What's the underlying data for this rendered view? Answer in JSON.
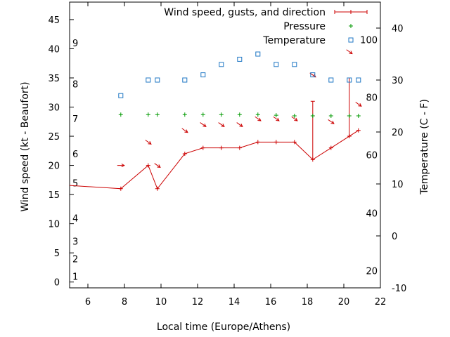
{
  "chart_data": {
    "type": "line",
    "xlabel": "Local time (Europe/Athens)",
    "ylabel_left": "Wind speed (kt - Beaufort)",
    "ylabel_right": "Temperature (C - F)",
    "xlim": [
      5,
      22
    ],
    "ylim_left": [
      -1,
      48
    ],
    "ylim_right": [
      -10,
      45
    ],
    "x_ticks": [
      6,
      8,
      10,
      12,
      14,
      16,
      18,
      20,
      22
    ],
    "y_left_ticks": [
      0,
      5,
      10,
      15,
      20,
      25,
      30,
      35,
      40,
      45
    ],
    "y_right_ticks": [
      -10,
      0,
      10,
      20,
      30,
      40
    ],
    "beaufort_labels": [
      {
        "label": "1",
        "value": 1
      },
      {
        "label": "2",
        "value": 4
      },
      {
        "label": "3",
        "value": 7
      },
      {
        "label": "4",
        "value": 11
      },
      {
        "label": "5",
        "value": 17
      },
      {
        "label": "6",
        "value": 22
      },
      {
        "label": "7",
        "value": 28
      },
      {
        "label": "8",
        "value": 34
      },
      {
        "label": "9",
        "value": 41
      }
    ],
    "fahrenheit_labels": [
      {
        "label": "20",
        "value": -6.7
      },
      {
        "label": "40",
        "value": 4.4
      },
      {
        "label": "60",
        "value": 15.6
      },
      {
        "label": "80",
        "value": 26.7
      },
      {
        "label": "100",
        "value": 37.8
      }
    ],
    "legend": [
      {
        "label": "Wind speed, gusts, and direction",
        "color": "#cc0000",
        "style": "line-cross"
      },
      {
        "label": "Pressure",
        "color": "#009900",
        "style": "plus"
      },
      {
        "label": "Temperature",
        "color": "#1f77c4",
        "style": "square"
      }
    ],
    "legend_position": "top-right",
    "grid": false,
    "series": [
      {
        "name": "Wind speed, gusts, and direction",
        "axis": "left",
        "color": "#cc0000",
        "x": [
          4.8,
          7.8,
          9.3,
          9.8,
          11.3,
          12.3,
          13.3,
          14.3,
          15.3,
          16.3,
          17.3,
          18.3,
          19.3,
          20.3,
          20.8
        ],
        "y": [
          16.6,
          16,
          20,
          16,
          22,
          23,
          23,
          23,
          24,
          24,
          24,
          21,
          23,
          25,
          26
        ],
        "gusts": [
          {
            "x": 18.3,
            "high": 31
          },
          {
            "x": 20.3,
            "high": 35
          }
        ],
        "direction_arrows": [
          {
            "x": 7.8,
            "y": 20,
            "dir": "E"
          },
          {
            "x": 9.3,
            "y": 24,
            "dir": "SE"
          },
          {
            "x": 9.8,
            "y": 20,
            "dir": "SE"
          },
          {
            "x": 11.3,
            "y": 26,
            "dir": "SE"
          },
          {
            "x": 12.3,
            "y": 27,
            "dir": "SE"
          },
          {
            "x": 13.3,
            "y": 27,
            "dir": "SE"
          },
          {
            "x": 14.3,
            "y": 27,
            "dir": "SE"
          },
          {
            "x": 15.3,
            "y": 28,
            "dir": "SE"
          },
          {
            "x": 16.3,
            "y": 28,
            "dir": "SE"
          },
          {
            "x": 17.3,
            "y": 28,
            "dir": "SE"
          },
          {
            "x": 18.3,
            "y": 35.5,
            "dir": "SE"
          },
          {
            "x": 19.3,
            "y": 27.5,
            "dir": "SE"
          },
          {
            "x": 20.3,
            "y": 39.5,
            "dir": "SE"
          },
          {
            "x": 20.8,
            "y": 30.5,
            "dir": "SE"
          }
        ]
      },
      {
        "name": "Pressure",
        "axis": "left",
        "color": "#009900",
        "x": [
          7.8,
          9.3,
          9.8,
          11.3,
          12.3,
          13.3,
          14.3,
          15.3,
          16.3,
          17.3,
          18.3,
          19.3,
          20.3,
          20.8
        ],
        "y": [
          28.7,
          28.7,
          28.7,
          28.7,
          28.7,
          28.7,
          28.7,
          28.7,
          28.6,
          28.5,
          28.5,
          28.5,
          28.5,
          28.5
        ]
      },
      {
        "name": "Temperature",
        "axis": "right",
        "color": "#1f77c4",
        "x": [
          7.8,
          9.3,
          9.8,
          11.3,
          12.3,
          13.3,
          14.3,
          15.3,
          16.3,
          17.3,
          18.3,
          19.3,
          20.3,
          20.8
        ],
        "y": [
          27,
          30,
          30,
          30,
          31,
          33,
          34,
          35,
          33,
          33,
          31,
          30,
          30,
          30
        ]
      }
    ]
  }
}
